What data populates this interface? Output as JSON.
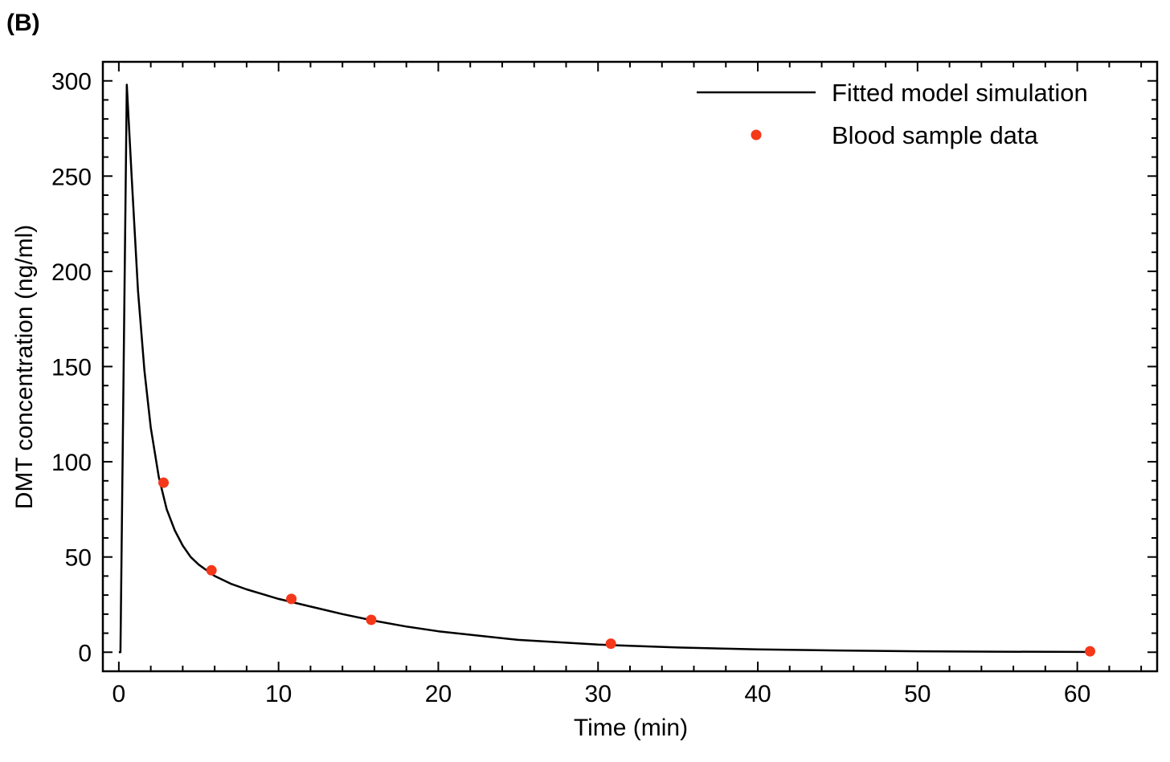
{
  "panel_label": "(B)",
  "chart_data": {
    "type": "line",
    "xlabel": "Time (min)",
    "ylabel": "DMT concentration (ng/ml)",
    "xlim": [
      -1,
      65
    ],
    "ylim": [
      -10,
      310
    ],
    "x_ticks": [
      0,
      10,
      20,
      30,
      40,
      50,
      60
    ],
    "x_tick_labels": [
      "0",
      "10",
      "20",
      "30",
      "40",
      "50",
      "60"
    ],
    "y_ticks": [
      0,
      50,
      100,
      150,
      200,
      250,
      300
    ],
    "y_tick_labels": [
      "0",
      "50",
      "100",
      "150",
      "200",
      "250",
      "300"
    ],
    "grid": false,
    "legend_position": "top-right",
    "series": [
      {
        "name": "Fitted model simulation",
        "kind": "line",
        "color": "#000000",
        "x": [
          0,
          0.1,
          0.5,
          0.8,
          1.2,
          1.6,
          2.0,
          2.5,
          3.0,
          3.5,
          4.0,
          4.5,
          5.0,
          6.0,
          7.0,
          8.0,
          9.0,
          10.0,
          12.0,
          14.0,
          16.0,
          18.0,
          20.0,
          25.0,
          30.0,
          35.0,
          40.0,
          45.0,
          50.0,
          55.0,
          60.0,
          61.0
        ],
        "y": [
          0,
          0,
          298,
          250,
          190,
          148,
          118,
          92,
          75,
          64,
          56,
          50,
          46,
          40,
          36,
          33,
          30.5,
          28,
          24,
          20,
          16.5,
          13.5,
          11,
          6.5,
          4,
          2.5,
          1.5,
          0.9,
          0.5,
          0.3,
          0.15,
          0.1
        ]
      },
      {
        "name": "Blood sample data",
        "kind": "scatter",
        "color": "#f5371a",
        "x": [
          2.8,
          5.8,
          10.8,
          15.8,
          30.8,
          60.8
        ],
        "y": [
          89,
          43,
          28,
          17,
          4.5,
          0.5
        ]
      }
    ]
  }
}
